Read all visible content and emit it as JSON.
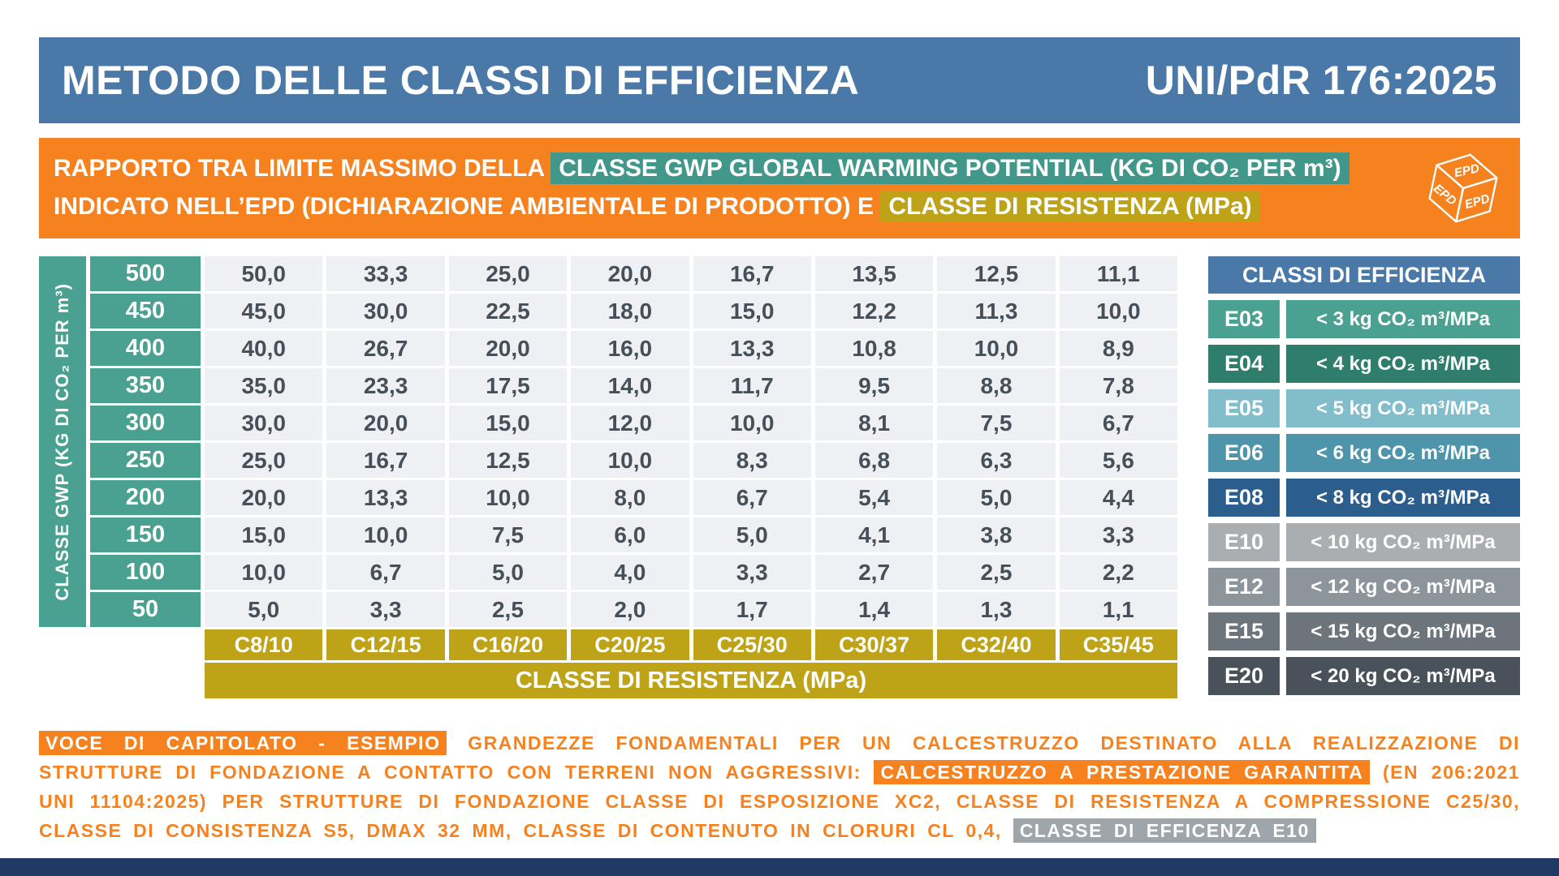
{
  "header": {
    "title": "METODO DELLE CLASSI DI EFFICIENZA",
    "standard": "UNI/PdR 176:2025"
  },
  "banner": {
    "line1_pre": "RAPPORTO TRA LIMITE MASSIMO DELLA ",
    "line1_highlight": "CLASSE GWP GLOBAL WARMING POTENTIAL (KG DI CO₂ PER m³)",
    "line2_pre": "INDICATO NELL’EPD (DICHIARAZIONE AMBIENTALE DI PRODOTTO) E ",
    "line2_highlight": "CLASSE DI RESISTENZA (MPa)",
    "epd_icon_label": "EPD"
  },
  "chart_data": {
    "type": "table",
    "title": "RAPPORTO TRA LIMITE MASSIMO DELLA CLASSE GWP GLOBAL WARMING POTENTIAL (KG DI CO₂ PER m³) INDICATO NELL’EPD (DICHIARAZIONE AMBIENTALE DI PRODOTTO) E CLASSE DI RESISTENZA (MPa)",
    "row_axis_label": "CLASSE GWP (KG DI CO₂ PER m³)",
    "col_axis_label": "CLASSE DI RESISTENZA (MPa)",
    "gwp_classes": [
      "500",
      "450",
      "400",
      "350",
      "300",
      "250",
      "200",
      "150",
      "100",
      "50"
    ],
    "resistance_classes": [
      "C8/10",
      "C12/15",
      "C16/20",
      "C20/25",
      "C25/30",
      "C30/37",
      "C32/40",
      "C35/45"
    ],
    "values": [
      [
        "50,0",
        "33,3",
        "25,0",
        "20,0",
        "16,7",
        "13,5",
        "12,5",
        "11,1"
      ],
      [
        "45,0",
        "30,0",
        "22,5",
        "18,0",
        "15,0",
        "12,2",
        "11,3",
        "10,0"
      ],
      [
        "40,0",
        "26,7",
        "20,0",
        "16,0",
        "13,3",
        "10,8",
        "10,0",
        "8,9"
      ],
      [
        "35,0",
        "23,3",
        "17,5",
        "14,0",
        "11,7",
        "9,5",
        "8,8",
        "7,8"
      ],
      [
        "30,0",
        "20,0",
        "15,0",
        "12,0",
        "10,0",
        "8,1",
        "7,5",
        "6,7"
      ],
      [
        "25,0",
        "16,7",
        "12,5",
        "10,0",
        "8,3",
        "6,8",
        "6,3",
        "5,6"
      ],
      [
        "20,0",
        "13,3",
        "10,0",
        "8,0",
        "6,7",
        "5,4",
        "5,0",
        "4,4"
      ],
      [
        "15,0",
        "10,0",
        "7,5",
        "6,0",
        "5,0",
        "4,1",
        "3,8",
        "3,3"
      ],
      [
        "10,0",
        "6,7",
        "5,0",
        "4,0",
        "3,3",
        "2,7",
        "2,5",
        "2,2"
      ],
      [
        "5,0",
        "3,3",
        "2,5",
        "2,0",
        "1,7",
        "1,4",
        "1,3",
        "1,1"
      ]
    ]
  },
  "efficiency_legend": {
    "title": "CLASSI DI EFFICIENZA",
    "items": [
      {
        "code": "E03",
        "label": "< 3 kg CO₂ m³/MPa",
        "color": "#4BA191"
      },
      {
        "code": "E04",
        "label": "< 4 kg CO₂ m³/MPa",
        "color": "#2F7D6C"
      },
      {
        "code": "E05",
        "label": "< 5 kg CO₂ m³/MPa",
        "color": "#82BDCC"
      },
      {
        "code": "E06",
        "label": "< 6 kg CO₂ m³/MPa",
        "color": "#4E95AB"
      },
      {
        "code": "E08",
        "label": "< 8 kg CO₂ m³/MPa",
        "color": "#2C5E8D"
      },
      {
        "code": "E10",
        "label": "< 10 kg CO₂ m³/MPa",
        "color": "#ABAEB0"
      },
      {
        "code": "E12",
        "label": "< 12 kg CO₂ m³/MPa",
        "color": "#8D959C"
      },
      {
        "code": "E15",
        "label": "< 15 kg CO₂ m³/MPa",
        "color": "#6C757C"
      },
      {
        "code": "E20",
        "label": "< 20 kg CO₂ m³/MPa",
        "color": "#49525A"
      }
    ]
  },
  "footer": {
    "tag": "VOCE DI CAPITOLATO - ESEMPIO",
    "part1": " GRANDEZZE FONDAMENTALI PER UN CALCESTRUZZO DESTINATO ALLA REALIZZAZIONE DI STRUTTURE DI FONDAZIONE A CONTATTO CON TERRENI NON AGGRESSIVI: ",
    "highlight2": "CALCESTRUZZO A PRESTAZIONE GARANTITA",
    "part2": " (EN 206:2021 UNI 11104:2025) PER STRUTTURE DI FONDAZIONE CLASSE DI ESPOSIZIONE XC2, CLASSE DI RESISTENZA A COMPRESSIONE C25/30, CLASSE DI CONSISTENZA S5, DMAX 32 MM, CLASSE DI CONTENUTO IN CLORURI CL 0,4, ",
    "highlight3": "CLASSE DI EFFICENZA E10"
  },
  "colors": {
    "header_blue": "#4A79A8",
    "orange": "#F5821F",
    "teal": "#4BA191",
    "teal_highlight": "#41988A",
    "gold": "#BEA217",
    "cell_bg": "#EFF0F4",
    "cell_text": "#474F58",
    "gray_highlight": "#9EA5AB",
    "bottom_bar": "#1F3A64"
  }
}
